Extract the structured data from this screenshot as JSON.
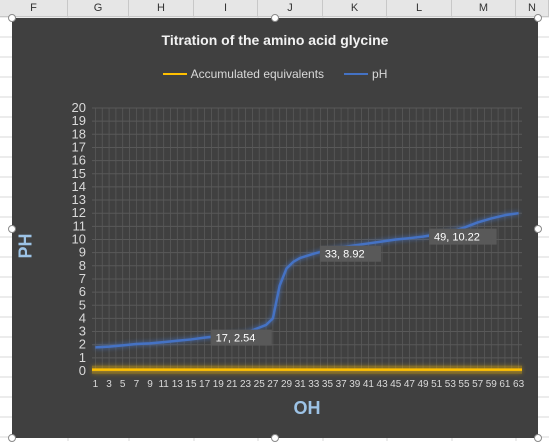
{
  "spreadsheet": {
    "column_headers": [
      "F",
      "G",
      "H",
      "I",
      "J",
      "K",
      "L",
      "M",
      "N"
    ]
  },
  "chart_data": {
    "type": "line",
    "title": "Titration of the amino acid glycine",
    "xlabel": "OH",
    "ylabel": "PH",
    "ylim": [
      0,
      20
    ],
    "y_ticks": [
      0,
      1,
      2,
      3,
      4,
      5,
      6,
      7,
      8,
      9,
      10,
      11,
      12,
      13,
      14,
      15,
      16,
      17,
      18,
      19,
      20
    ],
    "x_tick_labels": [
      "1",
      "3",
      "5",
      "7",
      "9",
      "11",
      "13",
      "15",
      "17",
      "19",
      "21",
      "23",
      "25",
      "27",
      "29",
      "31",
      "33",
      "35",
      "37",
      "39",
      "41",
      "43",
      "45",
      "47",
      "49",
      "51",
      "53",
      "55",
      "57",
      "59",
      "61",
      "63"
    ],
    "grid": true,
    "legend_position": "top",
    "series": [
      {
        "name": "Accumulated equivalents",
        "color": "#ffc000",
        "x": [
          1,
          3,
          5,
          7,
          9,
          11,
          13,
          15,
          17,
          19,
          21,
          23,
          25,
          27,
          29,
          31,
          33,
          35,
          37,
          39,
          41,
          43,
          45,
          47,
          49,
          51,
          53,
          55,
          57,
          59,
          61,
          63
        ],
        "values": [
          0.1,
          0.1,
          0.1,
          0.1,
          0.1,
          0.1,
          0.1,
          0.1,
          0.1,
          0.1,
          0.1,
          0.1,
          0.1,
          0.1,
          0.1,
          0.1,
          0.1,
          0.1,
          0.1,
          0.1,
          0.1,
          0.1,
          0.1,
          0.1,
          0.1,
          0.1,
          0.1,
          0.1,
          0.1,
          0.1,
          0.1,
          0.1
        ]
      },
      {
        "name": "pH",
        "color": "#4472c4",
        "x": [
          1,
          3,
          5,
          7,
          9,
          11,
          13,
          15,
          17,
          19,
          21,
          23,
          25,
          26,
          27,
          28,
          29,
          30,
          31,
          33,
          35,
          37,
          39,
          41,
          43,
          45,
          47,
          49,
          51,
          53,
          55,
          57,
          59,
          61,
          63
        ],
        "values": [
          1.8,
          1.85,
          1.95,
          2.05,
          2.1,
          2.2,
          2.3,
          2.4,
          2.54,
          2.65,
          2.78,
          2.9,
          3.3,
          3.5,
          4.0,
          6.5,
          7.8,
          8.3,
          8.6,
          8.92,
          9.2,
          9.4,
          9.55,
          9.7,
          9.85,
          10.0,
          10.1,
          10.22,
          10.4,
          10.6,
          10.9,
          11.3,
          11.6,
          11.85,
          12.0
        ]
      }
    ],
    "data_labels": [
      {
        "x": 17,
        "y": 2.54,
        "text": "17, 2.54"
      },
      {
        "x": 33,
        "y": 8.92,
        "text": "33, 8.92"
      },
      {
        "x": 49,
        "y": 10.22,
        "text": "49, 10.22"
      }
    ]
  }
}
